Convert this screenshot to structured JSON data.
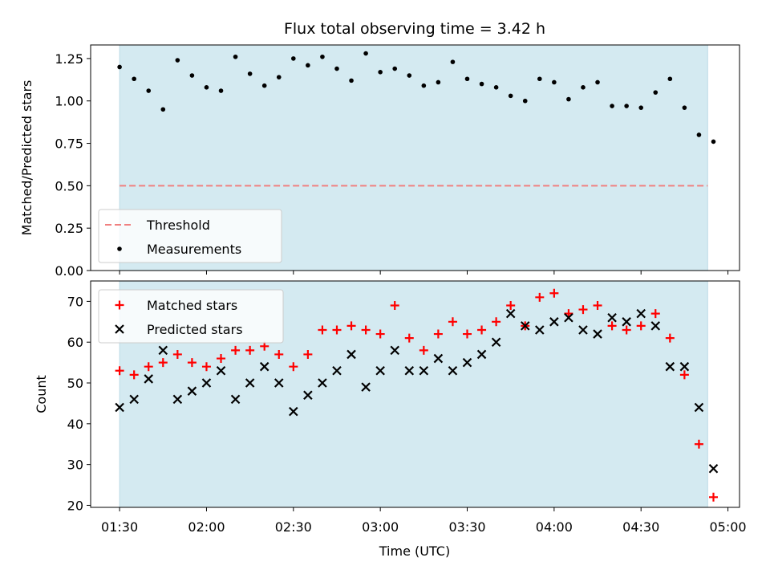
{
  "chart_data": {
    "type": "scatter",
    "title": "Flux total observing time = 3.42 h",
    "xlabel": "Time (UTC)",
    "x_tick_labels": [
      "01:30",
      "02:00",
      "02:30",
      "03:00",
      "03:30",
      "04:00",
      "04:30",
      "05:00"
    ],
    "x_tick_values": [
      "01:30",
      "02:00",
      "02:30",
      "03:00",
      "03:30",
      "04:00",
      "04:30",
      "05:00"
    ],
    "xlim": [
      "01:20",
      "05:04"
    ],
    "shaded_span": [
      "01:30",
      "04:53"
    ],
    "shaded_color": "#d4eaf1",
    "times": [
      "01:30",
      "01:35",
      "01:40",
      "01:45",
      "01:50",
      "01:55",
      "02:00",
      "02:05",
      "02:10",
      "02:15",
      "02:20",
      "02:25",
      "02:30",
      "02:35",
      "02:40",
      "02:45",
      "02:50",
      "02:55",
      "03:00",
      "03:05",
      "03:10",
      "03:15",
      "03:20",
      "03:25",
      "03:30",
      "03:35",
      "03:40",
      "03:45",
      "03:50",
      "03:55",
      "04:00",
      "04:05",
      "04:10",
      "04:15",
      "04:20",
      "04:25",
      "04:30",
      "04:35",
      "04:40",
      "04:45",
      "04:50",
      "04:55"
    ],
    "panels": [
      {
        "ylabel": "Matched/Predicted stars",
        "ylim": [
          0,
          1.33
        ],
        "y_ticks": [
          0,
          0.25,
          0.5,
          0.75,
          1.0,
          1.25
        ],
        "y_tick_labels": [
          "0.00",
          "0.25",
          "0.50",
          "0.75",
          "1.00",
          "1.25"
        ],
        "threshold": {
          "name": "Threshold",
          "value": 0.5,
          "color": "#f08080"
        },
        "series": [
          {
            "name": "Measurements",
            "color": "#000000",
            "marker": "dot",
            "values": [
              1.2,
              1.13,
              1.06,
              0.95,
              1.24,
              1.15,
              1.08,
              1.06,
              1.26,
              1.16,
              1.09,
              1.14,
              1.25,
              1.21,
              1.26,
              1.19,
              1.12,
              1.28,
              1.17,
              1.19,
              1.15,
              1.09,
              1.11,
              1.23,
              1.13,
              1.1,
              1.08,
              1.03,
              1.0,
              1.13,
              1.11,
              1.01,
              1.08,
              1.11,
              0.97,
              0.97,
              0.96,
              1.05,
              1.13,
              0.96,
              0.8,
              0.76
            ]
          }
        ],
        "legend": {
          "position": "lower-left",
          "entries": [
            "Threshold",
            "Measurements"
          ]
        }
      },
      {
        "ylabel": "Count",
        "ylim": [
          19.5,
          75
        ],
        "y_ticks": [
          20,
          30,
          40,
          50,
          60,
          70
        ],
        "y_tick_labels": [
          "20",
          "30",
          "40",
          "50",
          "60",
          "70"
        ],
        "series": [
          {
            "name": "Matched stars",
            "color": "#ff0000",
            "marker": "plus",
            "values": [
              53,
              52,
              54,
              55,
              57,
              55,
              54,
              56,
              58,
              58,
              59,
              57,
              54,
              57,
              63,
              63,
              64,
              63,
              62,
              69,
              61,
              58,
              62,
              65,
              62,
              63,
              65,
              69,
              64,
              71,
              72,
              67,
              68,
              69,
              64,
              63,
              64,
              67,
              61,
              52,
              35,
              22
            ]
          },
          {
            "name": "Predicted stars",
            "color": "#000000",
            "marker": "x",
            "values": [
              44,
              46,
              51,
              58,
              46,
              48,
              50,
              53,
              46,
              50,
              54,
              50,
              43,
              47,
              50,
              53,
              57,
              49,
              53,
              58,
              53,
              53,
              56,
              53,
              55,
              57,
              60,
              67,
              64,
              63,
              65,
              66,
              63,
              62,
              66,
              65,
              67,
              64,
              54,
              54,
              44,
              29
            ]
          }
        ],
        "legend": {
          "position": "upper-left",
          "entries": [
            "Matched stars",
            "Predicted stars"
          ]
        }
      }
    ]
  }
}
